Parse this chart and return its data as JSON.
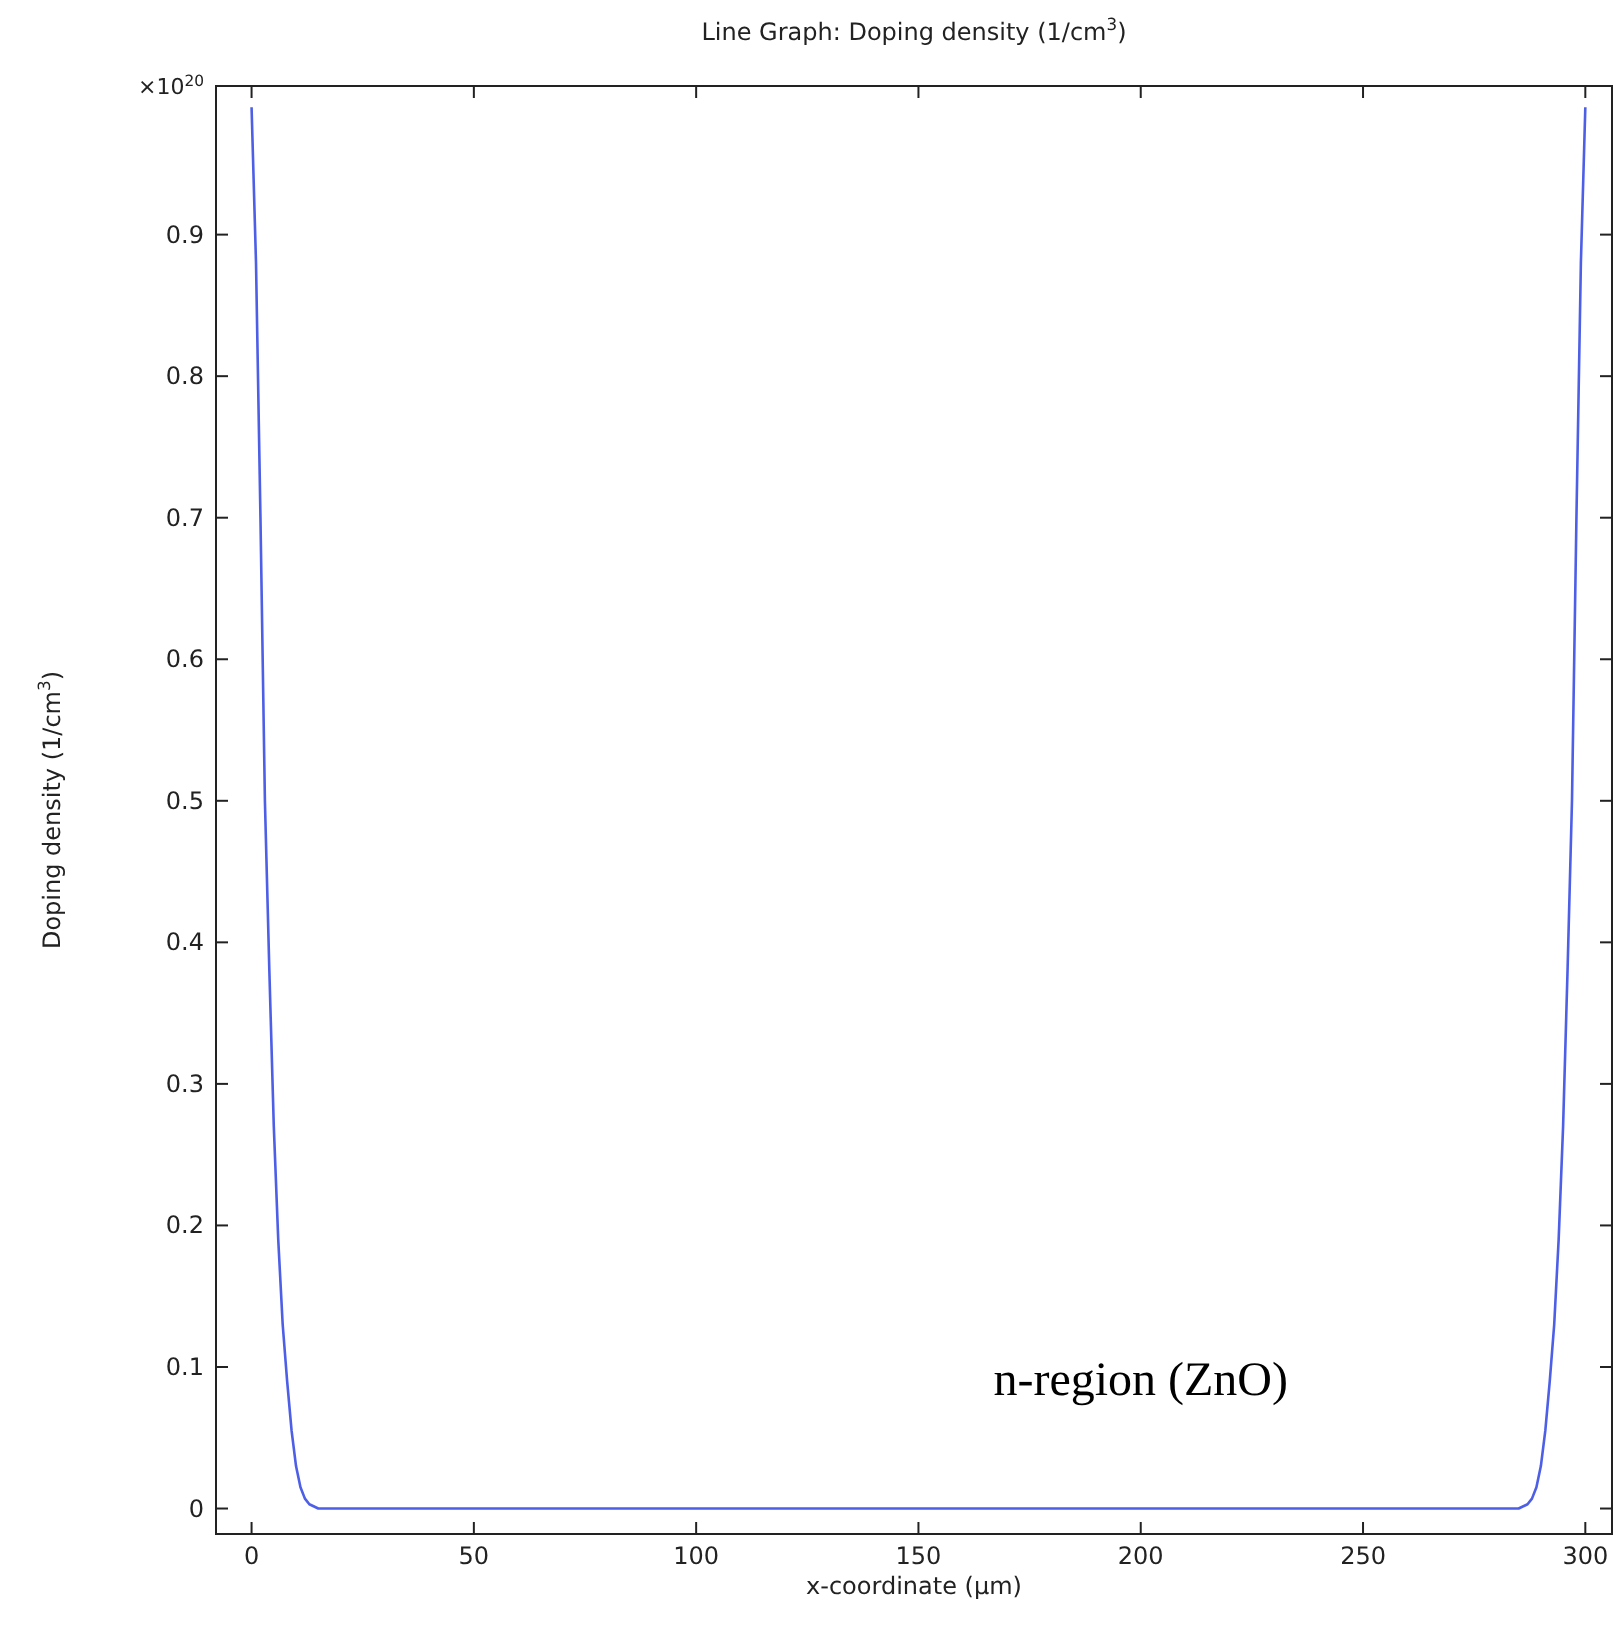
{
  "chart_data": {
    "type": "line",
    "title": "Line Graph: Doping density (1/cm$^{3}$)",
    "xlabel": "x-coordinate (µm)",
    "ylabel": "Doping density (1/cm$^{3}$)",
    "annotations": [
      "×10$^{20}$",
      "n-region (ZnO)"
    ],
    "series": [
      {
        "color": "#4d5fe6",
        "x": [
          0,
          1,
          2,
          3,
          4,
          5,
          6,
          7,
          8,
          9,
          10,
          11,
          12,
          13,
          15,
          285,
          287,
          288,
          289,
          290,
          291,
          292,
          293,
          294,
          295,
          296,
          297,
          298,
          299,
          300
        ],
        "values": [
          0.99,
          0.88,
          0.7,
          0.5,
          0.38,
          0.27,
          0.19,
          0.13,
          0.09,
          0.055,
          0.03,
          0.015,
          0.007,
          0.003,
          0,
          0,
          0.003,
          0.007,
          0.015,
          0.03,
          0.055,
          0.09,
          0.13,
          0.19,
          0.27,
          0.38,
          0.5,
          0.7,
          0.88,
          0.99
        ]
      }
    ],
    "xlim": [
      -8,
      306
    ],
    "ylim": [
      -0.018,
      1.005
    ],
    "xticks": [
      0,
      50,
      100,
      150,
      200,
      250,
      300
    ],
    "yticks": [
      0,
      0.1,
      0.2,
      0.3,
      0.4,
      0.5,
      0.6,
      0.7,
      0.8,
      0.9
    ],
    "marker": "none",
    "line_style": "solid"
  }
}
